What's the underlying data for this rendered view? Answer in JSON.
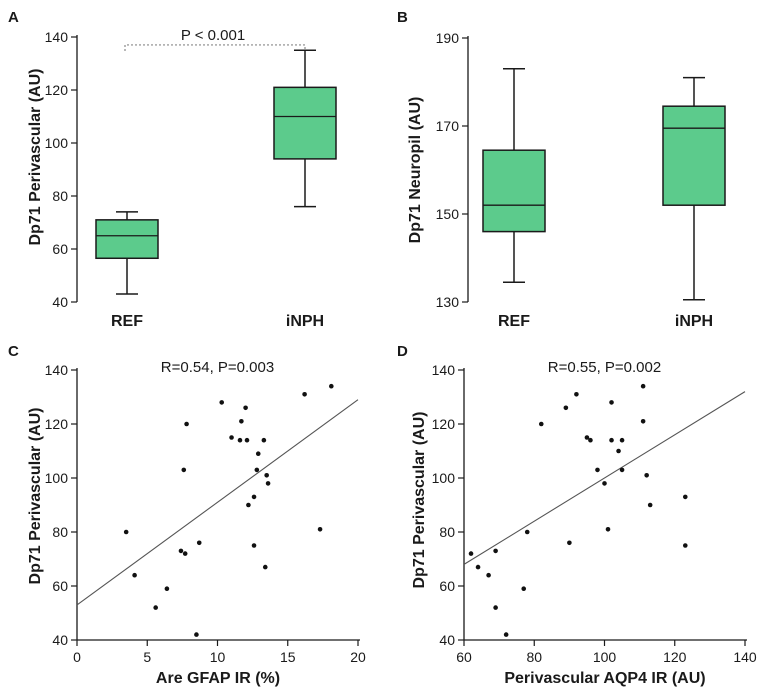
{
  "figure": {
    "title": ""
  },
  "colors": {
    "box_fill": "#5CCB8C",
    "stroke": "#1a1a1a",
    "point": "#111111",
    "trend": "#555555"
  },
  "chart_data": [
    {
      "panel": "A",
      "type": "box",
      "ylabel": "Dp71 Perivascular (AU)",
      "xlabel": "",
      "ylim": [
        40,
        140
      ],
      "yticks": [
        40,
        60,
        80,
        100,
        120,
        140
      ],
      "categories": [
        "REF",
        "iNPH"
      ],
      "boxes": [
        {
          "name": "REF",
          "min": 43,
          "q1": 56.5,
          "median": 65,
          "q3": 71,
          "max": 74
        },
        {
          "name": "iNPH",
          "min": 76,
          "q1": 94,
          "median": 110,
          "q3": 121,
          "max": 135
        }
      ],
      "annotation": "P < 0.001"
    },
    {
      "panel": "B",
      "type": "box",
      "ylabel": "Dp71 Neuropil (AU)",
      "xlabel": "",
      "ylim": [
        130,
        190
      ],
      "yticks": [
        130,
        150,
        170,
        190
      ],
      "categories": [
        "REF",
        "iNPH"
      ],
      "boxes": [
        {
          "name": "REF",
          "min": 134.5,
          "q1": 146,
          "median": 152,
          "q3": 164.5,
          "max": 183
        },
        {
          "name": "iNPH",
          "min": 130.5,
          "q1": 152,
          "median": 169.5,
          "q3": 174.5,
          "max": 181
        }
      ]
    },
    {
      "panel": "C",
      "type": "scatter",
      "ylabel": "Dp71 Perivascular (AU)",
      "xlabel": "Are GFAP IR (%)",
      "xlim": [
        0,
        20
      ],
      "ylim": [
        40,
        140
      ],
      "xticks": [
        0,
        5,
        10,
        15,
        20
      ],
      "yticks": [
        40,
        60,
        80,
        100,
        120,
        140
      ],
      "annotation": "R=0.54, P=0.003",
      "points": [
        {
          "x": 3.5,
          "y": 80
        },
        {
          "x": 4.1,
          "y": 64
        },
        {
          "x": 5.6,
          "y": 52
        },
        {
          "x": 6.4,
          "y": 59
        },
        {
          "x": 7.4,
          "y": 73
        },
        {
          "x": 7.6,
          "y": 103
        },
        {
          "x": 7.7,
          "y": 72
        },
        {
          "x": 7.8,
          "y": 120
        },
        {
          "x": 8.7,
          "y": 76
        },
        {
          "x": 8.5,
          "y": 42
        },
        {
          "x": 10.3,
          "y": 128
        },
        {
          "x": 11.0,
          "y": 115
        },
        {
          "x": 11.6,
          "y": 114
        },
        {
          "x": 11.7,
          "y": 121
        },
        {
          "x": 12.0,
          "y": 126
        },
        {
          "x": 12.1,
          "y": 114
        },
        {
          "x": 12.2,
          "y": 90
        },
        {
          "x": 12.6,
          "y": 93
        },
        {
          "x": 12.6,
          "y": 75
        },
        {
          "x": 12.8,
          "y": 103
        },
        {
          "x": 12.9,
          "y": 109
        },
        {
          "x": 13.3,
          "y": 114
        },
        {
          "x": 13.4,
          "y": 67
        },
        {
          "x": 13.5,
          "y": 101
        },
        {
          "x": 13.6,
          "y": 98
        },
        {
          "x": 16.2,
          "y": 131
        },
        {
          "x": 17.3,
          "y": 81
        },
        {
          "x": 18.1,
          "y": 134
        }
      ],
      "trendline": {
        "x1": 0,
        "y1": 53,
        "x2": 20,
        "y2": 129
      }
    },
    {
      "panel": "D",
      "type": "scatter",
      "ylabel": "Dp71 Perivascular (AU)",
      "xlabel": "Perivascular AQP4 IR (AU)",
      "xlim": [
        60,
        140
      ],
      "ylim": [
        40,
        140
      ],
      "xticks": [
        60,
        80,
        100,
        120,
        140
      ],
      "yticks": [
        40,
        60,
        80,
        100,
        120,
        140
      ],
      "annotation": "R=0.55, P=0.002",
      "points": [
        {
          "x": 62,
          "y": 72
        },
        {
          "x": 64,
          "y": 67
        },
        {
          "x": 67,
          "y": 64
        },
        {
          "x": 69,
          "y": 73
        },
        {
          "x": 69,
          "y": 52
        },
        {
          "x": 72,
          "y": 42
        },
        {
          "x": 77,
          "y": 59
        },
        {
          "x": 78,
          "y": 80
        },
        {
          "x": 82,
          "y": 120
        },
        {
          "x": 89,
          "y": 126
        },
        {
          "x": 90,
          "y": 76
        },
        {
          "x": 92,
          "y": 131
        },
        {
          "x": 95,
          "y": 115
        },
        {
          "x": 96,
          "y": 114
        },
        {
          "x": 98,
          "y": 103
        },
        {
          "x": 100,
          "y": 98
        },
        {
          "x": 101,
          "y": 81
        },
        {
          "x": 102,
          "y": 128
        },
        {
          "x": 102,
          "y": 114
        },
        {
          "x": 104,
          "y": 110
        },
        {
          "x": 105,
          "y": 114
        },
        {
          "x": 105,
          "y": 103
        },
        {
          "x": 111,
          "y": 121
        },
        {
          "x": 111,
          "y": 134
        },
        {
          "x": 112,
          "y": 101
        },
        {
          "x": 113,
          "y": 90
        },
        {
          "x": 123,
          "y": 93
        },
        {
          "x": 123,
          "y": 75
        }
      ],
      "trendline": {
        "x1": 60,
        "y1": 68,
        "x2": 140,
        "y2": 132
      }
    }
  ]
}
